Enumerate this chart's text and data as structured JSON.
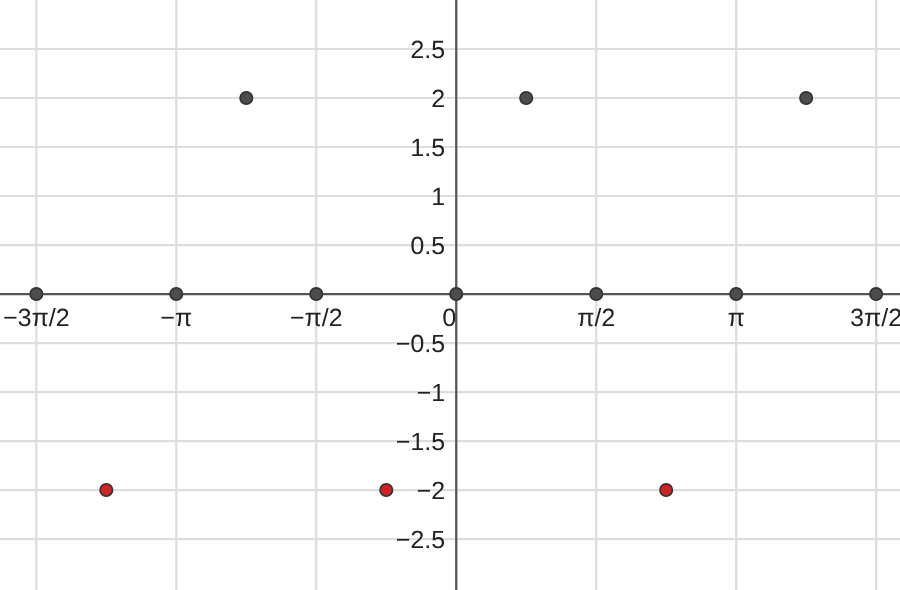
{
  "chart_data": {
    "type": "scatter",
    "series": [
      {
        "color": "#4d4d4d",
        "x": [
          -4.712,
          -3.142,
          -1.571,
          0,
          1.571,
          3.142,
          4.712
        ],
        "values": [
          0,
          0,
          0,
          0,
          0,
          0,
          0
        ]
      },
      {
        "color": "#4d4d4d",
        "x": [
          -2.356,
          0.785,
          3.927
        ],
        "values": [
          2,
          2,
          2
        ]
      },
      {
        "color": "#d42020",
        "x": [
          -3.927,
          -0.785,
          2.356
        ],
        "values": [
          -2,
          -2,
          -2
        ]
      }
    ],
    "marker": "circle",
    "xlim": [
      -5.12,
      4.98
    ],
    "ylim": [
      -3.02,
      3.0
    ],
    "xticks": [
      {
        "value": -4.712,
        "label": "−3π/2"
      },
      {
        "value": -3.142,
        "label": "−π"
      },
      {
        "value": -1.571,
        "label": "−π/2"
      },
      {
        "value": 0,
        "label": "0"
      },
      {
        "value": 1.571,
        "label": "π/2"
      },
      {
        "value": 3.142,
        "label": "π"
      },
      {
        "value": 4.712,
        "label": "3π/2"
      }
    ],
    "yticks": [
      {
        "value": -2.5,
        "label": "−2.5"
      },
      {
        "value": -2,
        "label": "−2"
      },
      {
        "value": -1.5,
        "label": "−1.5"
      },
      {
        "value": -1,
        "label": "−1"
      },
      {
        "value": -0.5,
        "label": "−0.5"
      },
      0.5,
      1,
      1.5,
      2,
      2.5
    ],
    "grid": true
  }
}
